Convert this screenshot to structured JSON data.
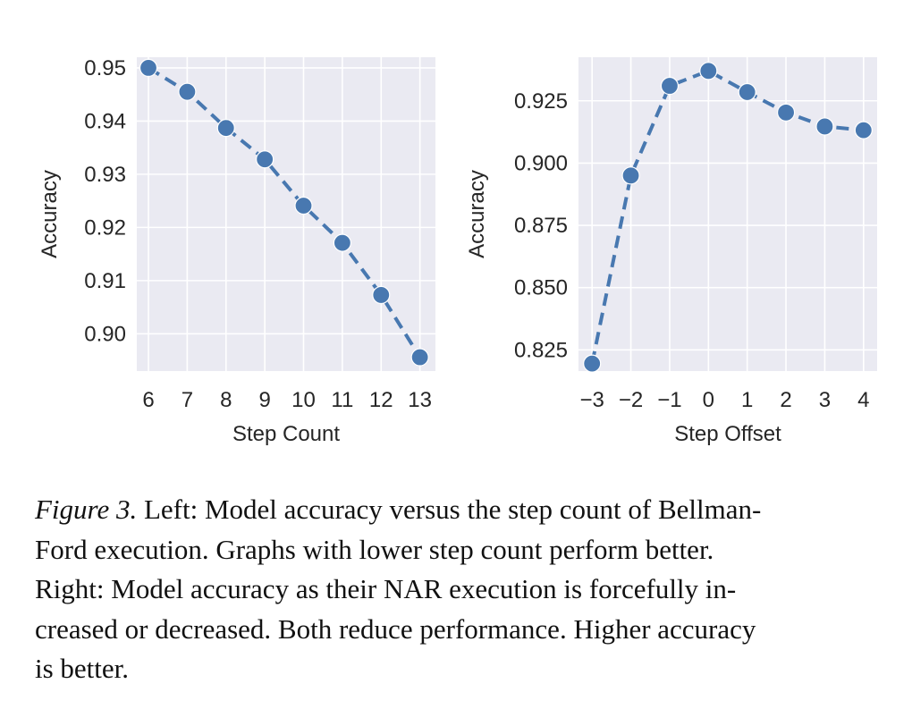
{
  "chart_data": [
    {
      "type": "line",
      "xlabel": "Step Count",
      "ylabel": "Accuracy",
      "x": [
        6,
        7,
        8,
        9,
        10,
        11,
        12,
        13
      ],
      "x_tick_labels": [
        "6",
        "7",
        "8",
        "9",
        "10",
        "11",
        "12",
        "13"
      ],
      "y": [
        0.95,
        0.9455,
        0.9387,
        0.9328,
        0.9241,
        0.9171,
        0.9073,
        0.8956
      ],
      "y_ticks": [
        0.9,
        0.91,
        0.92,
        0.93,
        0.94,
        0.95
      ],
      "y_tick_labels": [
        "0.90",
        "0.91",
        "0.92",
        "0.93",
        "0.94",
        "0.95"
      ],
      "xlim": [
        5.7,
        13.4
      ],
      "ylim": [
        0.893,
        0.952
      ],
      "line_style": "dashed",
      "marker": "circle",
      "color": "#4878b0",
      "grid": true
    },
    {
      "type": "line",
      "xlabel": "Step Offset",
      "ylabel": "Accuracy",
      "x": [
        -3,
        -2,
        -1,
        0,
        1,
        2,
        3,
        4
      ],
      "x_tick_labels": [
        "−3",
        "−2",
        "−1",
        "0",
        "1",
        "2",
        "3",
        "4"
      ],
      "y": [
        0.8195,
        0.895,
        0.931,
        0.937,
        0.9285,
        0.9203,
        0.9147,
        0.9132
      ],
      "y_ticks": [
        0.825,
        0.85,
        0.875,
        0.9,
        0.925
      ],
      "y_tick_labels": [
        "0.825",
        "0.850",
        "0.875",
        "0.900",
        "0.925"
      ],
      "xlim": [
        -3.35,
        4.35
      ],
      "ylim": [
        0.8165,
        0.9425
      ],
      "line_style": "dashed",
      "marker": "circle",
      "color": "#4878b0",
      "grid": true
    }
  ],
  "style": {
    "plot_background": "#eaeaf2",
    "grid_color": "#ffffff",
    "series_color": "#4878b0"
  },
  "caption": {
    "figure_label": "Figure 3.",
    "lines": [
      " Left: Model accuracy versus the step count of Bellman-",
      "Ford execution.  Graphs with lower step count perform better.",
      "Right: Model accuracy as their NAR execution is forcefully in-",
      "creased or decreased. Both reduce performance. Higher accuracy",
      "is better."
    ]
  }
}
